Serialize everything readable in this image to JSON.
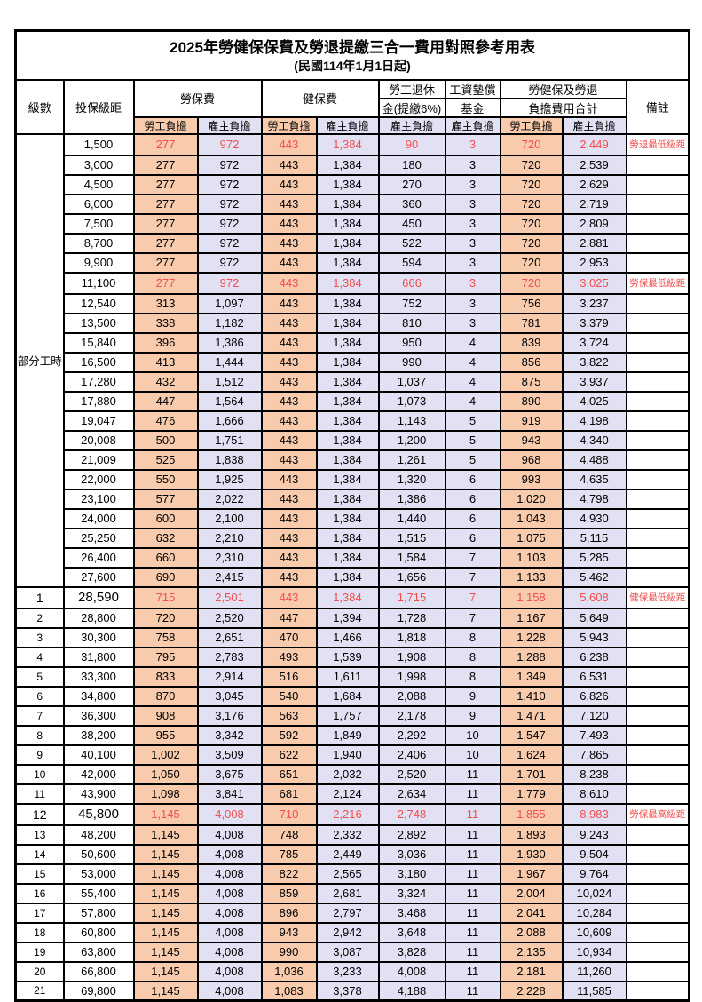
{
  "title": "2025年勞健保保費及勞退提繳三合一費用對照參考用表",
  "subtitle": "(民國114年1月1日起)",
  "colors": {
    "employee_bg": "#F8CBAD",
    "employer_bg": "#E2E1F3",
    "highlight_text": "#F24E4E",
    "border": "#000000"
  },
  "header": {
    "level": "級數",
    "bracket": "投保級距",
    "labor_ins": "勞保費",
    "health_ins": "健保費",
    "pension_line1": "勞工退休",
    "pension_line2": "金(提繳6%)",
    "wage_fund_line1": "工資墊償",
    "wage_fund_line2": "基金",
    "total_line1": "勞健保及勞退",
    "total_line2": "負擔費用合計",
    "remark": "備註",
    "employee": "勞工負擔",
    "employer": "雇主負擔"
  },
  "table": {
    "value_columns": [
      "labor-employee",
      "labor-employer",
      "health-employee",
      "health-employer",
      "pension-employer",
      "wagefund-employer",
      "total-employee",
      "total-employer"
    ],
    "rows": [
      {
        "level": {
          "label": "部分工時",
          "rowspan": 23
        },
        "bracket": "1,500",
        "values": [
          "277",
          "972",
          "443",
          "1,384",
          "90",
          "3",
          "720",
          "2,449"
        ],
        "remark": "勞退最低級距",
        "highlight": true
      },
      {
        "bracket": "3,000",
        "values": [
          "277",
          "972",
          "443",
          "1,384",
          "180",
          "3",
          "720",
          "2,539"
        ]
      },
      {
        "bracket": "4,500",
        "values": [
          "277",
          "972",
          "443",
          "1,384",
          "270",
          "3",
          "720",
          "2,629"
        ]
      },
      {
        "bracket": "6,000",
        "values": [
          "277",
          "972",
          "443",
          "1,384",
          "360",
          "3",
          "720",
          "2,719"
        ]
      },
      {
        "bracket": "7,500",
        "values": [
          "277",
          "972",
          "443",
          "1,384",
          "450",
          "3",
          "720",
          "2,809"
        ]
      },
      {
        "bracket": "8,700",
        "values": [
          "277",
          "972",
          "443",
          "1,384",
          "522",
          "3",
          "720",
          "2,881"
        ]
      },
      {
        "bracket": "9,900",
        "values": [
          "277",
          "972",
          "443",
          "1,384",
          "594",
          "3",
          "720",
          "2,953"
        ]
      },
      {
        "bracket": "11,100",
        "values": [
          "277",
          "972",
          "443",
          "1,384",
          "666",
          "3",
          "720",
          "3,025"
        ],
        "remark": "勞保最低級距",
        "highlight": true
      },
      {
        "bracket": "12,540",
        "values": [
          "313",
          "1,097",
          "443",
          "1,384",
          "752",
          "3",
          "756",
          "3,237"
        ]
      },
      {
        "bracket": "13,500",
        "values": [
          "338",
          "1,182",
          "443",
          "1,384",
          "810",
          "3",
          "781",
          "3,379"
        ]
      },
      {
        "bracket": "15,840",
        "values": [
          "396",
          "1,386",
          "443",
          "1,384",
          "950",
          "4",
          "839",
          "3,724"
        ]
      },
      {
        "bracket": "16,500",
        "values": [
          "413",
          "1,444",
          "443",
          "1,384",
          "990",
          "4",
          "856",
          "3,822"
        ]
      },
      {
        "bracket": "17,280",
        "values": [
          "432",
          "1,512",
          "443",
          "1,384",
          "1,037",
          "4",
          "875",
          "3,937"
        ]
      },
      {
        "bracket": "17,880",
        "values": [
          "447",
          "1,564",
          "443",
          "1,384",
          "1,073",
          "4",
          "890",
          "4,025"
        ]
      },
      {
        "bracket": "19,047",
        "values": [
          "476",
          "1,666",
          "443",
          "1,384",
          "1,143",
          "5",
          "919",
          "4,198"
        ]
      },
      {
        "bracket": "20,008",
        "values": [
          "500",
          "1,751",
          "443",
          "1,384",
          "1,200",
          "5",
          "943",
          "4,340"
        ]
      },
      {
        "bracket": "21,009",
        "values": [
          "525",
          "1,838",
          "443",
          "1,384",
          "1,261",
          "5",
          "968",
          "4,488"
        ]
      },
      {
        "bracket": "22,000",
        "values": [
          "550",
          "1,925",
          "443",
          "1,384",
          "1,320",
          "6",
          "993",
          "4,635"
        ]
      },
      {
        "bracket": "23,100",
        "values": [
          "577",
          "2,022",
          "443",
          "1,384",
          "1,386",
          "6",
          "1,020",
          "4,798"
        ]
      },
      {
        "bracket": "24,000",
        "values": [
          "600",
          "2,100",
          "443",
          "1,384",
          "1,440",
          "6",
          "1,043",
          "4,930"
        ]
      },
      {
        "bracket": "25,250",
        "values": [
          "632",
          "2,210",
          "443",
          "1,384",
          "1,515",
          "6",
          "1,075",
          "5,115"
        ]
      },
      {
        "bracket": "26,400",
        "values": [
          "660",
          "2,310",
          "443",
          "1,384",
          "1,584",
          "7",
          "1,103",
          "5,285"
        ]
      },
      {
        "bracket": "27,600",
        "values": [
          "690",
          "2,415",
          "443",
          "1,384",
          "1,656",
          "7",
          "1,133",
          "5,462"
        ]
      },
      {
        "level": {
          "label": "1"
        },
        "bracket": "28,590",
        "values": [
          "715",
          "2,501",
          "443",
          "1,384",
          "1,715",
          "7",
          "1,158",
          "5,608"
        ],
        "remark": "健保最低級距",
        "highlight": true,
        "big": true
      },
      {
        "level": {
          "label": "2"
        },
        "bracket": "28,800",
        "values": [
          "720",
          "2,520",
          "447",
          "1,394",
          "1,728",
          "7",
          "1,167",
          "5,649"
        ]
      },
      {
        "level": {
          "label": "3"
        },
        "bracket": "30,300",
        "values": [
          "758",
          "2,651",
          "470",
          "1,466",
          "1,818",
          "8",
          "1,228",
          "5,943"
        ]
      },
      {
        "level": {
          "label": "4"
        },
        "bracket": "31,800",
        "values": [
          "795",
          "2,783",
          "493",
          "1,539",
          "1,908",
          "8",
          "1,288",
          "6,238"
        ]
      },
      {
        "level": {
          "label": "5"
        },
        "bracket": "33,300",
        "values": [
          "833",
          "2,914",
          "516",
          "1,611",
          "1,998",
          "8",
          "1,349",
          "6,531"
        ]
      },
      {
        "level": {
          "label": "6"
        },
        "bracket": "34,800",
        "values": [
          "870",
          "3,045",
          "540",
          "1,684",
          "2,088",
          "9",
          "1,410",
          "6,826"
        ]
      },
      {
        "level": {
          "label": "7"
        },
        "bracket": "36,300",
        "values": [
          "908",
          "3,176",
          "563",
          "1,757",
          "2,178",
          "9",
          "1,471",
          "7,120"
        ]
      },
      {
        "level": {
          "label": "8"
        },
        "bracket": "38,200",
        "values": [
          "955",
          "3,342",
          "592",
          "1,849",
          "2,292",
          "10",
          "1,547",
          "7,493"
        ]
      },
      {
        "level": {
          "label": "9"
        },
        "bracket": "40,100",
        "values": [
          "1,002",
          "3,509",
          "622",
          "1,940",
          "2,406",
          "10",
          "1,624",
          "7,865"
        ]
      },
      {
        "level": {
          "label": "10"
        },
        "bracket": "42,000",
        "values": [
          "1,050",
          "3,675",
          "651",
          "2,032",
          "2,520",
          "11",
          "1,701",
          "8,238"
        ]
      },
      {
        "level": {
          "label": "11"
        },
        "bracket": "43,900",
        "values": [
          "1,098",
          "3,841",
          "681",
          "2,124",
          "2,634",
          "11",
          "1,779",
          "8,610"
        ]
      },
      {
        "level": {
          "label": "12"
        },
        "bracket": "45,800",
        "values": [
          "1,145",
          "4,008",
          "710",
          "2,216",
          "2,748",
          "11",
          "1,855",
          "8,983"
        ],
        "remark": "勞保最高級距",
        "highlight": true,
        "big": true
      },
      {
        "level": {
          "label": "13"
        },
        "bracket": "48,200",
        "values": [
          "1,145",
          "4,008",
          "748",
          "2,332",
          "2,892",
          "11",
          "1,893",
          "9,243"
        ]
      },
      {
        "level": {
          "label": "14"
        },
        "bracket": "50,600",
        "values": [
          "1,145",
          "4,008",
          "785",
          "2,449",
          "3,036",
          "11",
          "1,930",
          "9,504"
        ]
      },
      {
        "level": {
          "label": "15"
        },
        "bracket": "53,000",
        "values": [
          "1,145",
          "4,008",
          "822",
          "2,565",
          "3,180",
          "11",
          "1,967",
          "9,764"
        ]
      },
      {
        "level": {
          "label": "16"
        },
        "bracket": "55,400",
        "values": [
          "1,145",
          "4,008",
          "859",
          "2,681",
          "3,324",
          "11",
          "2,004",
          "10,024"
        ]
      },
      {
        "level": {
          "label": "17"
        },
        "bracket": "57,800",
        "values": [
          "1,145",
          "4,008",
          "896",
          "2,797",
          "3,468",
          "11",
          "2,041",
          "10,284"
        ]
      },
      {
        "level": {
          "label": "18"
        },
        "bracket": "60,800",
        "values": [
          "1,145",
          "4,008",
          "943",
          "2,942",
          "3,648",
          "11",
          "2,088",
          "10,609"
        ]
      },
      {
        "level": {
          "label": "19"
        },
        "bracket": "63,800",
        "values": [
          "1,145",
          "4,008",
          "990",
          "3,087",
          "3,828",
          "11",
          "2,135",
          "10,934"
        ]
      },
      {
        "level": {
          "label": "20"
        },
        "bracket": "66,800",
        "values": [
          "1,145",
          "4,008",
          "1,036",
          "3,233",
          "4,008",
          "11",
          "2,181",
          "11,260"
        ]
      },
      {
        "level": {
          "label": "21"
        },
        "bracket": "69,800",
        "values": [
          "1,145",
          "4,008",
          "1,083",
          "3,378",
          "4,188",
          "11",
          "2,228",
          "11,585"
        ]
      }
    ]
  }
}
